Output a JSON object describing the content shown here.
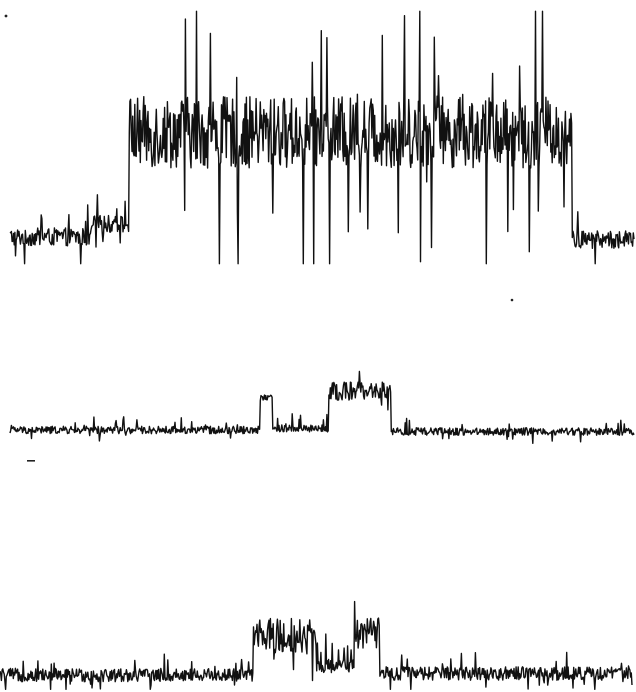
{
  "figure": {
    "background": "#ffffff",
    "ink": "#111111"
  },
  "chart_data": [
    {
      "type": "line",
      "title": "",
      "xlabel": "",
      "ylabel": "",
      "grid": false,
      "legend": "none",
      "xlim": [
        0,
        100
      ],
      "ylim": [
        0,
        10
      ],
      "series": [
        {
          "baseline": 1.2,
          "noise": 0.35,
          "spike_rate": 0.08,
          "segments": [
            {
              "x": [
                0,
                13
              ],
              "level": 1.1
            },
            {
              "x": [
                13,
                19
              ],
              "level": 1.6
            },
            {
              "x": [
                19,
                90
              ],
              "level": 5.2,
              "noise": 1.4,
              "spikes": "up_down"
            },
            {
              "x": [
                90,
                100
              ],
              "level": 1.0
            }
          ]
        }
      ]
    },
    {
      "type": "line",
      "title": "",
      "xlabel": "",
      "ylabel": "",
      "grid": false,
      "legend": "none",
      "xlim": [
        0,
        100
      ],
      "ylim": [
        0,
        10
      ],
      "series": [
        {
          "baseline": 1.0,
          "noise": 0.25,
          "segments": [
            {
              "x": [
                0,
                40
              ],
              "level": 1.0
            },
            {
              "x": [
                40,
                42
              ],
              "level": 3.2
            },
            {
              "x": [
                42,
                51
              ],
              "level": 1.1,
              "spikes": "up"
            },
            {
              "x": [
                51,
                61
              ],
              "level": 3.6,
              "noise": 0.6
            },
            {
              "x": [
                61,
                100
              ],
              "level": 0.9
            }
          ]
        }
      ]
    },
    {
      "type": "line",
      "title": "",
      "xlabel": "",
      "ylabel": "",
      "grid": false,
      "legend": "none",
      "xlim": [
        0,
        100
      ],
      "ylim": [
        0,
        10
      ],
      "series": [
        {
          "baseline": 1.0,
          "noise": 0.45,
          "segments": [
            {
              "x": [
                0,
                40
              ],
              "level": 1.0
            },
            {
              "x": [
                40,
                50
              ],
              "level": 3.6,
              "noise": 1.2
            },
            {
              "x": [
                50,
                56
              ],
              "level": 1.6,
              "spikes": "up"
            },
            {
              "x": [
                56,
                60
              ],
              "level": 3.8,
              "noise": 1.0
            },
            {
              "x": [
                60,
                100
              ],
              "level": 1.1
            }
          ]
        }
      ]
    }
  ]
}
